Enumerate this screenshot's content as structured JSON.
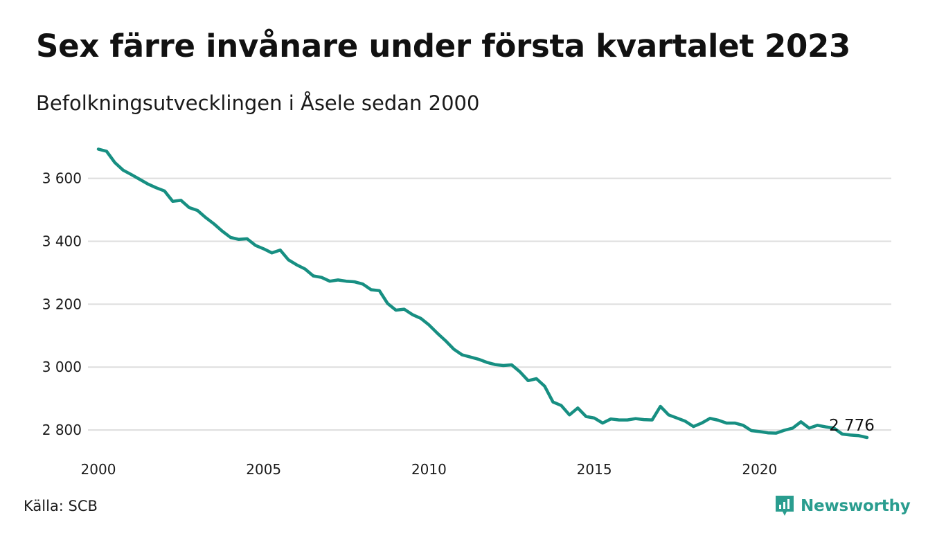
{
  "header": {
    "title": "Sex färre invånare under första kvartalet 2023",
    "subtitle": "Befolkningsutvecklingen i Åsele sedan 2000"
  },
  "footer": {
    "source": "Källa: SCB",
    "brand": "Newsworthy"
  },
  "colors": {
    "line": "#178f82",
    "grid": "#dddddd",
    "brand": "#2a9d8f"
  },
  "icons": {
    "brand": "newsworthy-logo-icon"
  },
  "chart_data": {
    "type": "line",
    "x_unit": "year (quarterly points)",
    "xlim": [
      2000,
      2023.25
    ],
    "ylim": [
      2776,
      3696
    ],
    "y_ticks": [
      {
        "value": 2800,
        "label": "2 800"
      },
      {
        "value": 3000,
        "label": "3 000"
      },
      {
        "value": 3200,
        "label": "3 200"
      },
      {
        "value": 3400,
        "label": "3 400"
      },
      {
        "value": 3600,
        "label": "3 600"
      }
    ],
    "x_ticks": [
      {
        "value": 2000,
        "label": "2000"
      },
      {
        "value": 2005,
        "label": "2005"
      },
      {
        "value": 2010,
        "label": "2010"
      },
      {
        "value": 2015,
        "label": "2015"
      },
      {
        "value": 2020,
        "label": "2020"
      }
    ],
    "grid": true,
    "end_label": "2 776",
    "series": [
      {
        "values": [
          [
            2000.0,
            3693
          ],
          [
            2000.25,
            3686
          ],
          [
            2000.5,
            3650
          ],
          [
            2000.75,
            3626
          ],
          [
            2001.0,
            3612
          ],
          [
            2001.25,
            3597
          ],
          [
            2001.5,
            3582
          ],
          [
            2001.75,
            3570
          ],
          [
            2002.0,
            3560
          ],
          [
            2002.25,
            3527
          ],
          [
            2002.5,
            3530
          ],
          [
            2002.75,
            3507
          ],
          [
            2003.0,
            3498
          ],
          [
            2003.25,
            3475
          ],
          [
            2003.5,
            3455
          ],
          [
            2003.75,
            3432
          ],
          [
            2004.0,
            3412
          ],
          [
            2004.25,
            3406
          ],
          [
            2004.5,
            3408
          ],
          [
            2004.75,
            3387
          ],
          [
            2005.0,
            3376
          ],
          [
            2005.25,
            3363
          ],
          [
            2005.5,
            3372
          ],
          [
            2005.75,
            3341
          ],
          [
            2006.0,
            3325
          ],
          [
            2006.25,
            3312
          ],
          [
            2006.5,
            3290
          ],
          [
            2006.75,
            3285
          ],
          [
            2007.0,
            3273
          ],
          [
            2007.25,
            3277
          ],
          [
            2007.5,
            3273
          ],
          [
            2007.75,
            3271
          ],
          [
            2008.0,
            3264
          ],
          [
            2008.25,
            3246
          ],
          [
            2008.5,
            3243
          ],
          [
            2008.75,
            3202
          ],
          [
            2009.0,
            3181
          ],
          [
            2009.25,
            3184
          ],
          [
            2009.5,
            3167
          ],
          [
            2009.75,
            3155
          ],
          [
            2010.0,
            3134
          ],
          [
            2010.25,
            3108
          ],
          [
            2010.5,
            3084
          ],
          [
            2010.75,
            3057
          ],
          [
            2011.0,
            3039
          ],
          [
            2011.25,
            3032
          ],
          [
            2011.5,
            3025
          ],
          [
            2011.75,
            3015
          ],
          [
            2012.0,
            3008
          ],
          [
            2012.25,
            3005
          ],
          [
            2012.5,
            3007
          ],
          [
            2012.75,
            2985
          ],
          [
            2013.0,
            2957
          ],
          [
            2013.25,
            2963
          ],
          [
            2013.5,
            2939
          ],
          [
            2013.75,
            2889
          ],
          [
            2014.0,
            2878
          ],
          [
            2014.25,
            2848
          ],
          [
            2014.5,
            2870
          ],
          [
            2014.75,
            2843
          ],
          [
            2015.0,
            2838
          ],
          [
            2015.25,
            2822
          ],
          [
            2015.5,
            2835
          ],
          [
            2015.75,
            2832
          ],
          [
            2016.0,
            2832
          ],
          [
            2016.25,
            2836
          ],
          [
            2016.5,
            2833
          ],
          [
            2016.75,
            2832
          ],
          [
            2017.0,
            2875
          ],
          [
            2017.25,
            2848
          ],
          [
            2017.5,
            2838
          ],
          [
            2017.75,
            2828
          ],
          [
            2018.0,
            2811
          ],
          [
            2018.25,
            2822
          ],
          [
            2018.5,
            2837
          ],
          [
            2018.75,
            2831
          ],
          [
            2019.0,
            2822
          ],
          [
            2019.25,
            2822
          ],
          [
            2019.5,
            2815
          ],
          [
            2019.75,
            2798
          ],
          [
            2020.0,
            2795
          ],
          [
            2020.25,
            2791
          ],
          [
            2020.5,
            2790
          ],
          [
            2020.75,
            2799
          ],
          [
            2021.0,
            2806
          ],
          [
            2021.25,
            2826
          ],
          [
            2021.5,
            2806
          ],
          [
            2021.75,
            2815
          ],
          [
            2022.0,
            2810
          ],
          [
            2022.25,
            2806
          ],
          [
            2022.5,
            2787
          ],
          [
            2022.75,
            2784
          ],
          [
            2023.0,
            2782
          ],
          [
            2023.25,
            2776
          ]
        ]
      }
    ]
  }
}
